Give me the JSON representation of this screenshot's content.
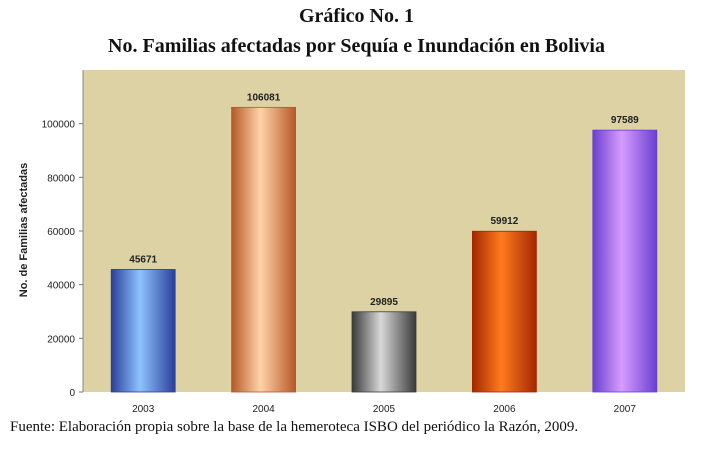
{
  "header": {
    "title": "Gráfico No. 1",
    "subtitle": "No. Familias afectadas por  Sequía e Inundación en Bolivia"
  },
  "source": {
    "text": "Fuente: Elaboración propia sobre la base de la hemeroteca ISBO del periódico la Razón, 2009."
  },
  "chart_data": {
    "type": "bar",
    "title": "Gráfico No. 1",
    "subtitle": "No. Familias afectadas por  Sequía e Inundación en Bolivia",
    "ylabel": "No. de Familias afectadas",
    "xlabel": "",
    "categories": [
      "2003",
      "2004",
      "2005",
      "2006",
      "2007"
    ],
    "values": [
      45671,
      106081,
      29895,
      59912,
      97589
    ],
    "data_labels": [
      "45671",
      "106081",
      "29895",
      "59912",
      "97589"
    ],
    "ylim": [
      0,
      120000
    ],
    "yticks": [
      0,
      20000,
      40000,
      60000,
      80000,
      100000
    ],
    "ytick_labels": [
      "0",
      "20000",
      "40000",
      "60000",
      "80000",
      "100000"
    ],
    "grid": false,
    "plot_background": "#dcd2a4",
    "bar_colors": [
      {
        "dark": "#2a3f9a",
        "light": "#8ec3ff"
      },
      {
        "dark": "#b5592a",
        "light": "#ffd3a8"
      },
      {
        "dark": "#3a3a3a",
        "light": "#d8d8d8"
      },
      {
        "dark": "#a32800",
        "light": "#ff7a1e"
      },
      {
        "dark": "#6a3fcf",
        "light": "#d79cff"
      }
    ]
  }
}
